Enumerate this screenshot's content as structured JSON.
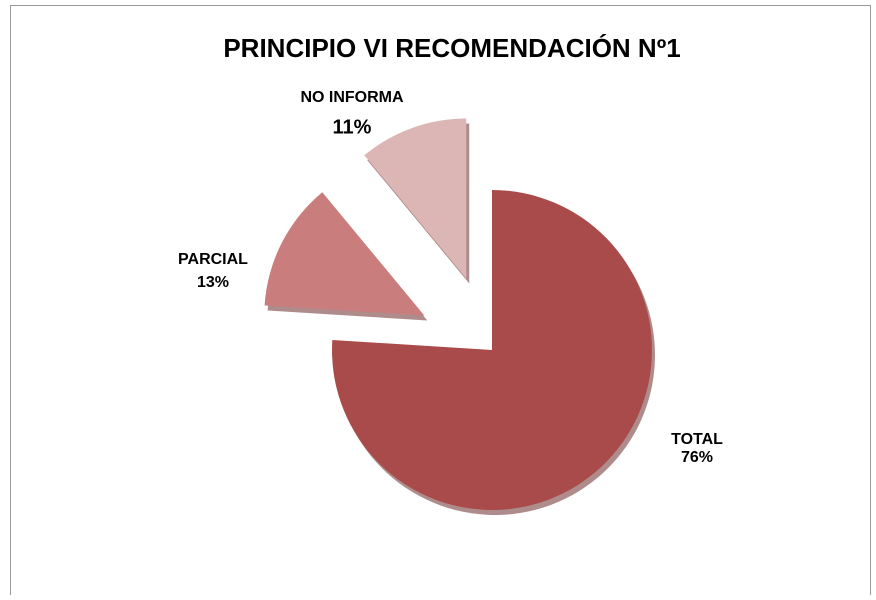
{
  "chart_data": {
    "type": "pie",
    "title": "PRINCIPIO VI RECOMENDACIÓN Nº1",
    "categories": [
      "TOTAL",
      "PARCIAL",
      "NO INFORMA"
    ],
    "values": [
      76,
      13,
      11
    ],
    "value_labels": [
      "76%",
      "13%",
      "11%"
    ],
    "colors": [
      "#a94b4a",
      "#c97d7c",
      "#dcb6b5"
    ]
  }
}
